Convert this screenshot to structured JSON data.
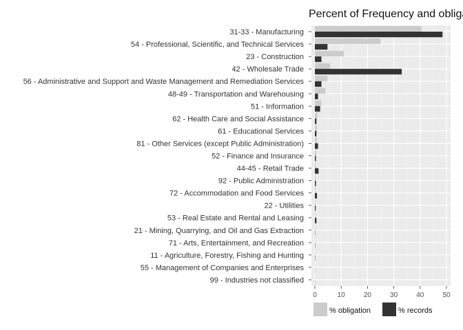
{
  "chart_data": {
    "type": "bar",
    "orientation": "horizontal",
    "title": "Percent of Frequency and obliga",
    "xlabel": "",
    "ylabel": "",
    "xlim": [
      0,
      50
    ],
    "xticks": [
      0,
      10,
      20,
      30,
      40,
      50
    ],
    "grid": true,
    "legend_position": "bottom",
    "categories": [
      "31-33  -  Manufacturing",
      "54  -  Professional, Scientific, and Technical Services",
      "23  -  Construction",
      "42  -  Wholesale Trade",
      "56  -  Administrative and Support and Waste Management and Remediation Services",
      "48-49  -  Transportation and Warehousing",
      "51  -  Information",
      "62  -  Health Care and Social Assistance",
      "61  -  Educational Services",
      "81  -  Other Services (except Public Administration)",
      "52  -  Finance and Insurance",
      "44-45  -  Retail Trade",
      "92  -  Public Administration",
      "72  -  Accommodation and Food Services",
      "22  -  Utilities",
      "53  -  Real Estate and Rental and Leasing",
      "21  -  Mining, Quarrying, and Oil and Gas Extraction",
      "71  -  Arts, Entertainment, and Recreation",
      "11  -  Agriculture, Forestry, Fishing and Hunting",
      "55  -  Management of Companies and Enterprises",
      "99  -  Industries not classified"
    ],
    "series": [
      {
        "name": "% obligation",
        "color": "#cccccc",
        "values": [
          40.5,
          25.0,
          11.0,
          5.8,
          4.8,
          4.0,
          2.5,
          1.0,
          0.8,
          0.8,
          0.5,
          0.4,
          0.3,
          0.3,
          0.25,
          0.2,
          0.15,
          0.1,
          0.1,
          0.05,
          0.02
        ]
      },
      {
        "name": "% records",
        "color": "#333333",
        "values": [
          48.5,
          4.8,
          2.5,
          33.0,
          2.5,
          1.2,
          2.0,
          0.6,
          0.6,
          1.2,
          0.4,
          1.4,
          0.4,
          0.8,
          0.3,
          0.6,
          0.1,
          0.1,
          0.1,
          0.05,
          0.05
        ]
      }
    ]
  }
}
